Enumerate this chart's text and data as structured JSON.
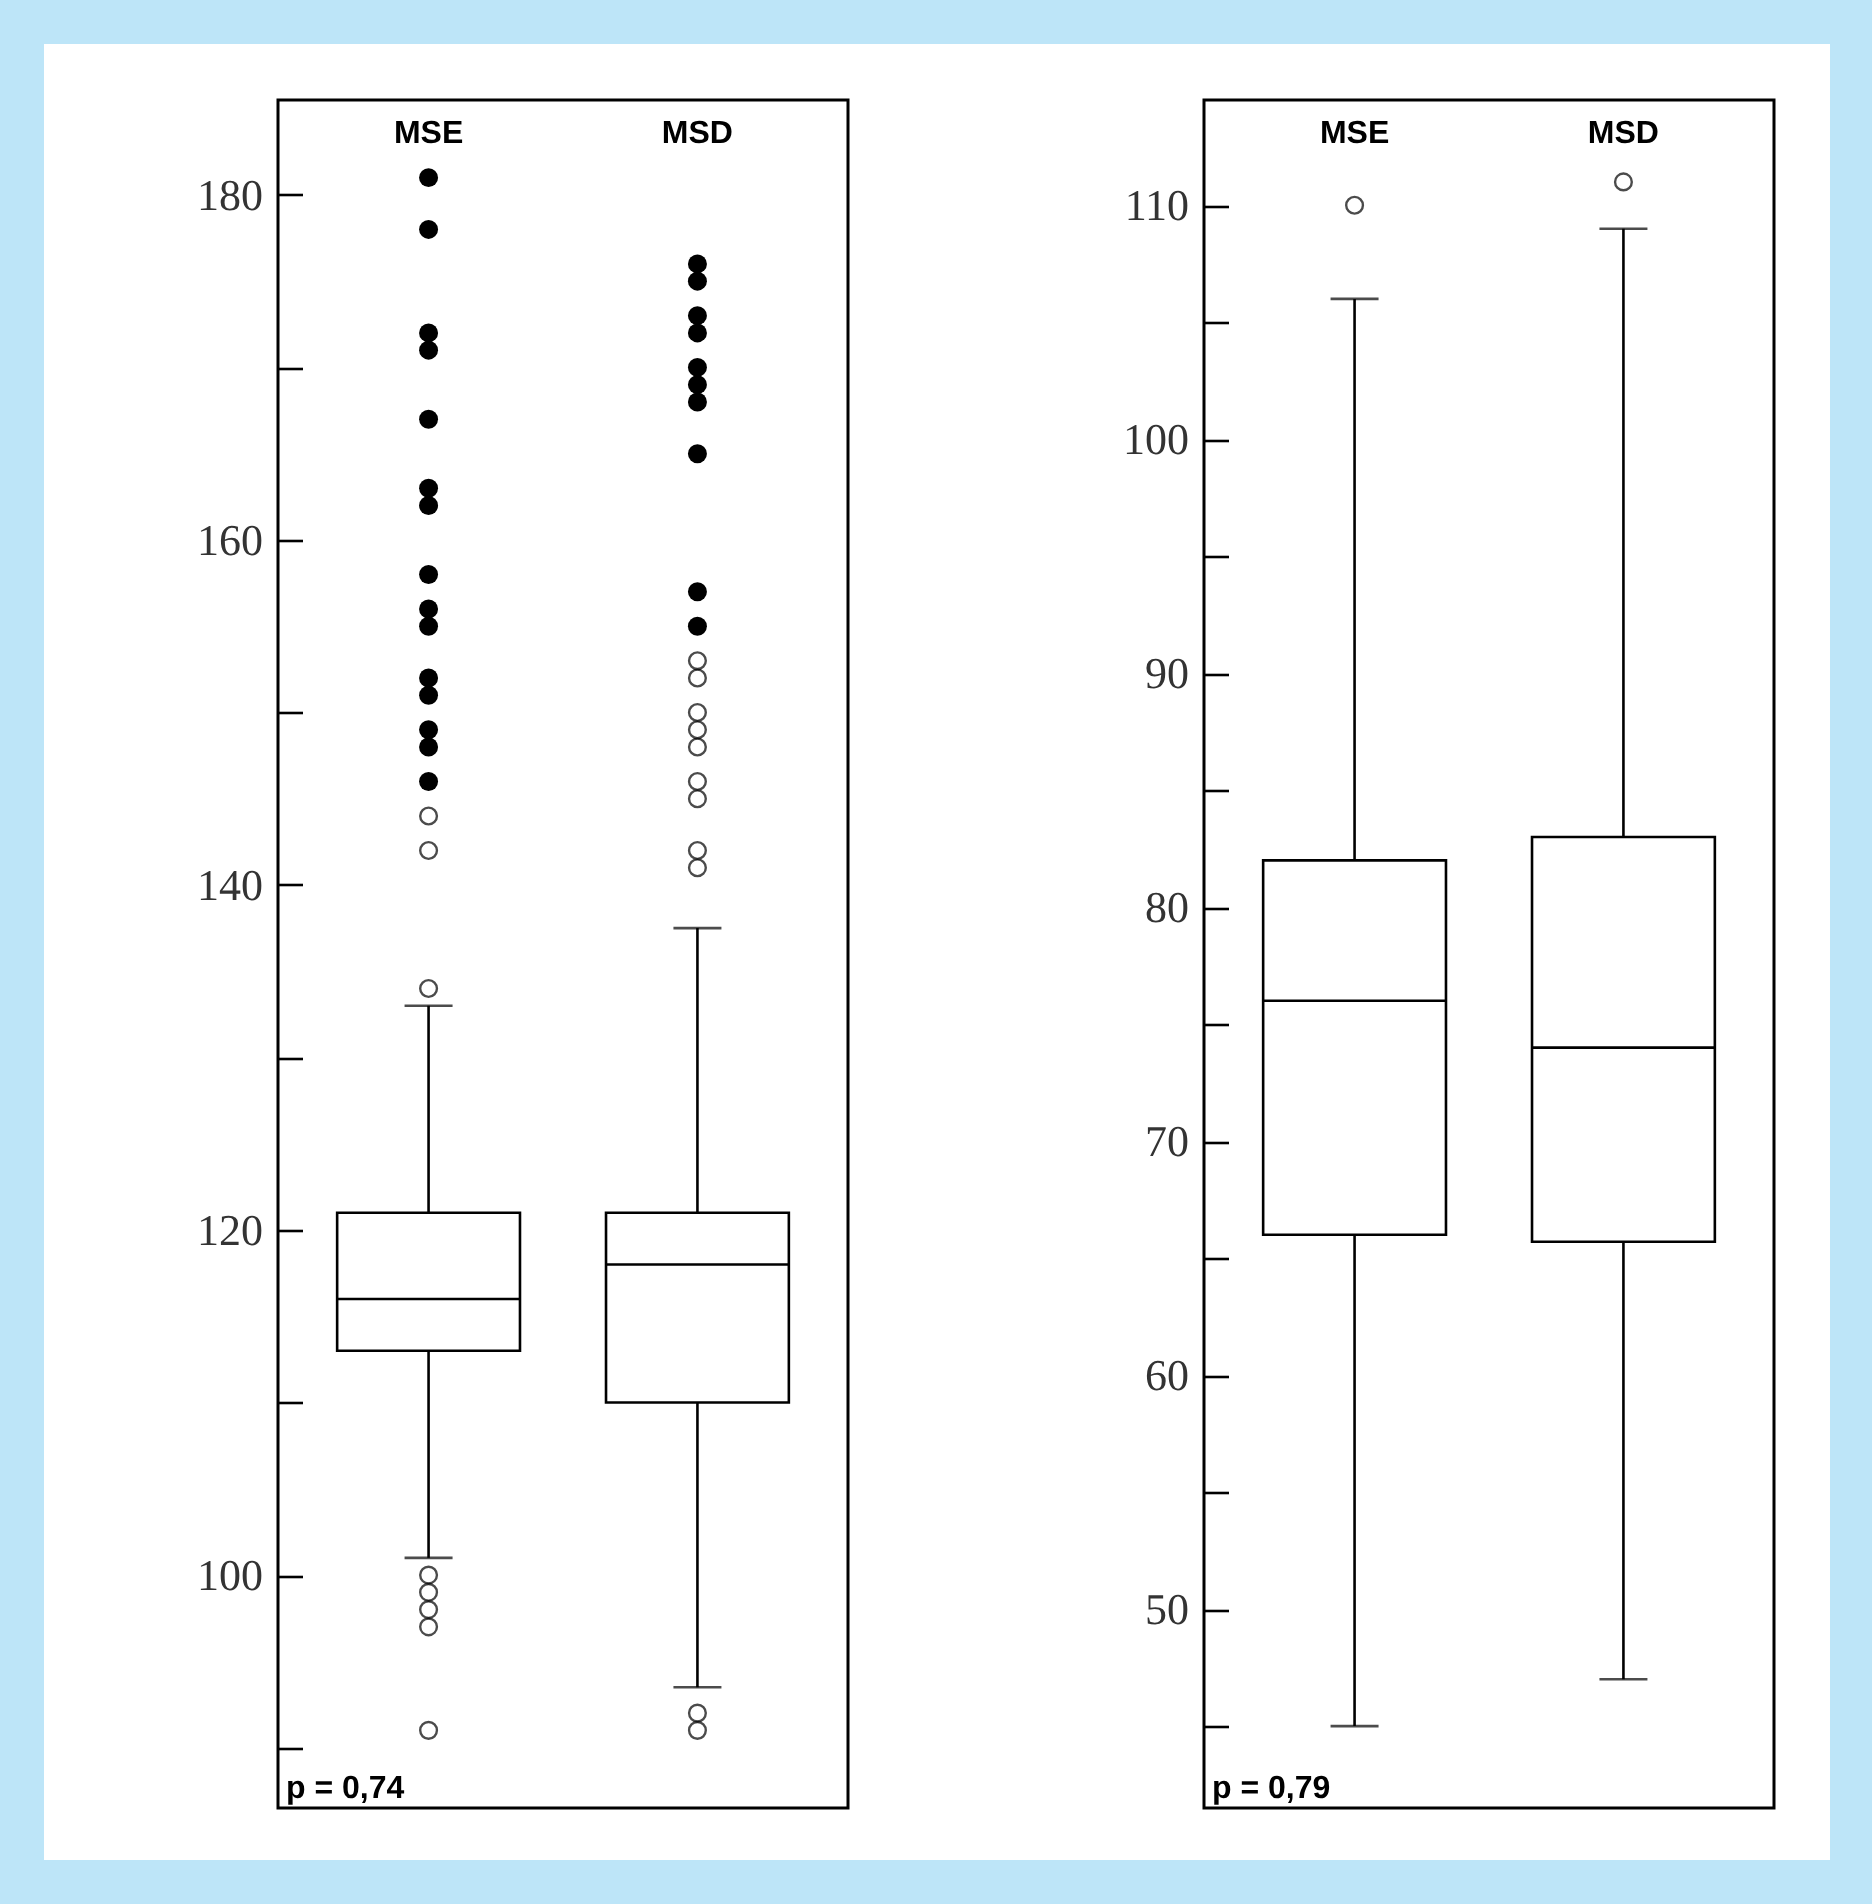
{
  "chart_data": [
    {
      "type": "box",
      "categories": [
        "MSE",
        "MSD"
      ],
      "boxes": [
        {
          "low": 101,
          "q1": 113,
          "median": 116,
          "q3": 121,
          "high": 133,
          "outliers": [
            134,
            144,
            142,
            100,
            99,
            98,
            97,
            91
          ]
        },
        {
          "low": 93.5,
          "q1": 110,
          "median": 118,
          "q3": 121,
          "high": 137.5,
          "outliers": [
            153,
            152,
            150,
            149,
            148,
            146,
            145,
            142,
            141,
            92,
            91
          ]
        }
      ],
      "series": [
        {
          "type": "scatter",
          "color": "#000000",
          "x": [
            "MSE",
            "MSE",
            "MSE",
            "MSE",
            "MSE",
            "MSE",
            "MSE",
            "MSE",
            "MSE",
            "MSE",
            "MSE",
            "MSE",
            "MSE",
            "MSE",
            "MSE",
            "MSD",
            "MSD",
            "MSD",
            "MSD",
            "MSD",
            "MSD",
            "MSD",
            "MSD",
            "MSD",
            "MSD"
          ],
          "values": [
            181,
            178,
            172,
            171,
            167,
            163,
            162,
            158,
            156,
            155,
            152,
            151,
            149,
            148,
            146,
            176,
            175,
            173,
            172,
            170,
            169,
            168,
            165,
            157,
            155
          ]
        }
      ],
      "marker": "circle",
      "ylim": [
        86.5,
        185.5
      ],
      "yticks": [
        {
          "value": 90,
          "label": null
        },
        100,
        {
          "value": 110,
          "label": null
        },
        120,
        {
          "value": 130,
          "label": null
        },
        140,
        {
          "value": 150,
          "label": null
        },
        160,
        {
          "value": 170,
          "label": null
        },
        180
      ],
      "annotations": [
        "p = 0,74"
      ]
    },
    {
      "type": "box",
      "categories": [
        "MSE",
        "MSD"
      ],
      "boxes": [
        {
          "low": 45,
          "q1": 66,
          "median": 76,
          "q3": 82,
          "high": 106,
          "outliers": [
            110
          ]
        },
        {
          "low": 47,
          "q1": 65.7,
          "median": 74,
          "q3": 83,
          "high": 109,
          "outliers": [
            111
          ]
        }
      ],
      "ylim": [
        41.5,
        114.5
      ],
      "yticks": [
        {
          "value": 45,
          "label": null
        },
        50,
        {
          "value": 55,
          "label": null
        },
        60,
        {
          "value": 65,
          "label": null
        },
        70,
        {
          "value": 75,
          "label": null
        },
        80,
        {
          "value": 85,
          "label": null
        },
        90,
        {
          "value": 95,
          "label": null
        },
        100,
        {
          "value": 105,
          "label": null
        },
        110
      ],
      "annotations": [
        "p = 0,79"
      ]
    }
  ]
}
